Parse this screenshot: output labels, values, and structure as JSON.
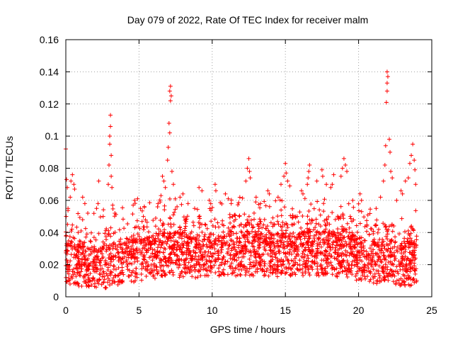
{
  "chart_data": {
    "type": "scatter",
    "title": "Day 079 of 2022, Rate Of TEC Index for receiver malm",
    "xlabel": "GPS time / hours",
    "ylabel": "ROTI / TECUs",
    "xlim": [
      0,
      25
    ],
    "ylim": [
      0,
      0.16
    ],
    "x_ticks": [
      0,
      5,
      10,
      15,
      20,
      25
    ],
    "x_tick_labels": [
      "0",
      "5",
      "10",
      "15",
      "20",
      "25"
    ],
    "y_ticks": [
      0,
      0.02,
      0.04,
      0.06,
      0.08,
      0.1,
      0.12,
      0.14,
      0.16
    ],
    "y_tick_labels": [
      "0",
      "0.02",
      "0.04",
      "0.06",
      "0.08",
      "0.1",
      "0.12",
      "0.14",
      "0.16"
    ],
    "grid": true,
    "marker": "+",
    "marker_color": "#ff0000",
    "baseline": [
      [
        0.0,
        0.022
      ],
      [
        1.0,
        0.02
      ],
      [
        2.0,
        0.018
      ],
      [
        3.0,
        0.02
      ],
      [
        4.0,
        0.021
      ],
      [
        5.0,
        0.024
      ],
      [
        6.0,
        0.025
      ],
      [
        7.0,
        0.026
      ],
      [
        8.0,
        0.026
      ],
      [
        9.0,
        0.025
      ],
      [
        10.0,
        0.026
      ],
      [
        11.0,
        0.027
      ],
      [
        12.0,
        0.027
      ],
      [
        13.0,
        0.027
      ],
      [
        14.0,
        0.026
      ],
      [
        15.0,
        0.027
      ],
      [
        16.0,
        0.027
      ],
      [
        17.0,
        0.027
      ],
      [
        18.0,
        0.027
      ],
      [
        19.0,
        0.026
      ],
      [
        20.0,
        0.024
      ],
      [
        21.0,
        0.022
      ],
      [
        22.0,
        0.022
      ],
      [
        23.0,
        0.021
      ],
      [
        24.0,
        0.02
      ]
    ],
    "series": [
      {
        "values": [
          [
            0.0,
            0.092
          ],
          [
            0.05,
            0.073
          ],
          [
            0.1,
            0.068
          ],
          [
            0.15,
            0.055
          ],
          [
            0.3,
            0.062
          ],
          [
            0.35,
            0.072
          ],
          [
            0.45,
            0.076
          ],
          [
            0.55,
            0.07
          ],
          [
            0.6,
            0.067
          ],
          [
            1.15,
            0.062
          ],
          [
            1.3,
            0.058
          ],
          [
            1.5,
            0.052
          ],
          [
            2.1,
            0.055
          ],
          [
            2.2,
            0.058
          ],
          [
            2.25,
            0.072
          ],
          [
            2.55,
            0.05
          ],
          [
            2.9,
            0.07
          ],
          [
            2.95,
            0.082
          ],
          [
            3.0,
            0.095
          ],
          [
            3.0,
            0.1
          ],
          [
            3.05,
            0.106
          ],
          [
            3.05,
            0.113
          ],
          [
            3.1,
            0.088
          ],
          [
            3.1,
            0.075
          ],
          [
            3.15,
            0.068
          ],
          [
            3.2,
            0.057
          ],
          [
            3.35,
            0.052
          ],
          [
            4.6,
            0.057
          ],
          [
            4.7,
            0.06
          ],
          [
            4.9,
            0.061
          ],
          [
            5.1,
            0.055
          ],
          [
            5.3,
            0.05
          ],
          [
            6.3,
            0.058
          ],
          [
            6.5,
            0.063
          ],
          [
            6.6,
            0.075
          ],
          [
            6.7,
            0.072
          ],
          [
            6.8,
            0.068
          ],
          [
            6.95,
            0.085
          ],
          [
            7.0,
            0.093
          ],
          [
            7.05,
            0.108
          ],
          [
            7.1,
            0.102
          ],
          [
            7.15,
            0.122
          ],
          [
            7.1,
            0.128
          ],
          [
            7.15,
            0.131
          ],
          [
            7.2,
            0.125
          ],
          [
            7.25,
            0.078
          ],
          [
            7.35,
            0.07
          ],
          [
            7.8,
            0.062
          ],
          [
            8.0,
            0.064
          ],
          [
            8.35,
            0.058
          ],
          [
            8.8,
            0.055
          ],
          [
            9.1,
            0.068
          ],
          [
            9.3,
            0.066
          ],
          [
            9.8,
            0.06
          ],
          [
            9.9,
            0.058
          ],
          [
            10.2,
            0.07
          ],
          [
            10.25,
            0.066
          ],
          [
            10.9,
            0.064
          ],
          [
            11.1,
            0.061
          ],
          [
            11.3,
            0.058
          ],
          [
            12.3,
            0.072
          ],
          [
            12.4,
            0.08
          ],
          [
            12.5,
            0.086
          ],
          [
            12.55,
            0.078
          ],
          [
            12.6,
            0.074
          ],
          [
            13.0,
            0.062
          ],
          [
            13.3,
            0.058
          ],
          [
            13.8,
            0.066
          ],
          [
            13.9,
            0.064
          ],
          [
            14.5,
            0.062
          ],
          [
            14.7,
            0.07
          ],
          [
            14.9,
            0.075
          ],
          [
            15.0,
            0.083
          ],
          [
            15.05,
            0.077
          ],
          [
            15.15,
            0.072
          ],
          [
            15.3,
            0.069
          ],
          [
            16.1,
            0.066
          ],
          [
            16.2,
            0.064
          ],
          [
            16.5,
            0.07
          ],
          [
            16.55,
            0.074
          ],
          [
            16.6,
            0.078
          ],
          [
            16.65,
            0.082
          ],
          [
            17.15,
            0.072
          ],
          [
            17.5,
            0.079
          ],
          [
            17.55,
            0.075
          ],
          [
            17.8,
            0.07
          ],
          [
            18.1,
            0.068
          ],
          [
            18.2,
            0.07
          ],
          [
            18.3,
            0.076
          ],
          [
            18.8,
            0.075
          ],
          [
            18.9,
            0.08
          ],
          [
            19.0,
            0.086
          ],
          [
            19.1,
            0.082
          ],
          [
            19.2,
            0.078
          ],
          [
            19.6,
            0.06
          ],
          [
            20.1,
            0.064
          ],
          [
            20.2,
            0.06
          ],
          [
            21.2,
            0.055
          ],
          [
            21.5,
            0.062
          ],
          [
            21.7,
            0.072
          ],
          [
            21.8,
            0.082
          ],
          [
            21.85,
            0.094
          ],
          [
            21.9,
            0.121
          ],
          [
            21.95,
            0.128
          ],
          [
            21.95,
            0.133
          ],
          [
            22.0,
            0.137
          ],
          [
            21.95,
            0.14
          ],
          [
            22.1,
            0.098
          ],
          [
            22.15,
            0.09
          ],
          [
            22.2,
            0.078
          ],
          [
            22.3,
            0.074
          ],
          [
            22.6,
            0.06
          ],
          [
            22.9,
            0.066
          ],
          [
            23.0,
            0.064
          ],
          [
            23.2,
            0.072
          ],
          [
            23.4,
            0.074
          ],
          [
            23.5,
            0.083
          ],
          [
            23.6,
            0.088
          ],
          [
            23.7,
            0.095
          ],
          [
            23.8,
            0.085
          ],
          [
            23.85,
            0.079
          ],
          [
            23.9,
            0.07
          ]
        ]
      }
    ]
  }
}
